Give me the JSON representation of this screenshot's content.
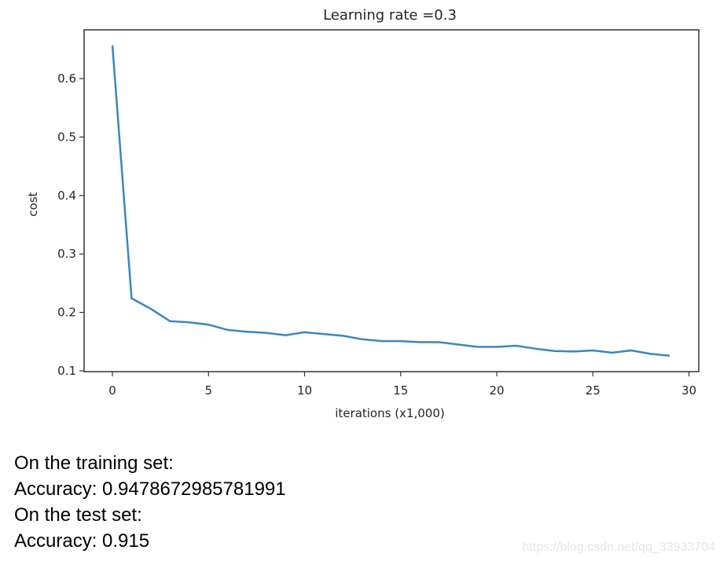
{
  "chart_data": {
    "type": "line",
    "title": "Learning rate =0.3",
    "xlabel": "iterations (x1,000)",
    "ylabel": "cost",
    "x": [
      0,
      1,
      2,
      3,
      4,
      5,
      6,
      7,
      8,
      9,
      10,
      11,
      12,
      13,
      14,
      15,
      16,
      17,
      18,
      19,
      20,
      21,
      22,
      23,
      24,
      25,
      26,
      27,
      28,
      29
    ],
    "series": [
      {
        "name": "cost",
        "color": "#3a87c1",
        "values": [
          0.657,
          0.224,
          0.206,
          0.185,
          0.183,
          0.179,
          0.17,
          0.167,
          0.165,
          0.161,
          0.166,
          0.163,
          0.16,
          0.154,
          0.151,
          0.151,
          0.149,
          0.149,
          0.145,
          0.141,
          0.141,
          0.143,
          0.138,
          0.134,
          0.133,
          0.135,
          0.131,
          0.135,
          0.129,
          0.126
        ]
      }
    ],
    "xticks": [
      "0",
      "5",
      "10",
      "15",
      "20",
      "25",
      "30"
    ],
    "xtick_values": [
      0,
      5,
      10,
      15,
      20,
      25,
      30
    ],
    "yticks": [
      "0.1",
      "0.2",
      "0.3",
      "0.4",
      "0.5",
      "0.6"
    ],
    "ytick_values": [
      0.1,
      0.2,
      0.3,
      0.4,
      0.5,
      0.6
    ],
    "xlim": [
      -1.5,
      30.5
    ],
    "ylim": [
      0.1,
      0.68
    ],
    "grid": false,
    "legend": null
  },
  "output": {
    "lines": [
      "On the training set:",
      "Accuracy: 0.9478672985781991",
      "On the test set:",
      "Accuracy: 0.915"
    ]
  },
  "watermark": "https://blog.csdn.net/qq_33933704"
}
